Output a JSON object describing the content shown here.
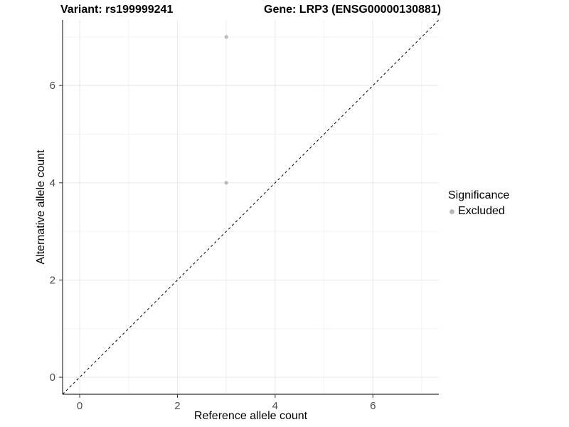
{
  "chart_data": {
    "type": "scatter",
    "title_left": "Variant: rs199999241",
    "title_right": "Gene: LRP3 (ENSG00000130881)",
    "xlabel": "Reference allele count",
    "ylabel": "Alternative allele count",
    "xlim": [
      -0.35,
      7.35
    ],
    "ylim": [
      -0.35,
      7.35
    ],
    "xticks": [
      0,
      2,
      4,
      6
    ],
    "yticks": [
      0,
      2,
      4,
      6
    ],
    "x_minor_ticks": [
      1,
      3,
      5,
      7
    ],
    "y_minor_ticks": [
      1,
      3,
      5,
      7
    ],
    "grid": "major+minor",
    "points": [
      {
        "x": 3,
        "y": 7,
        "significance": "Excluded"
      },
      {
        "x": 3,
        "y": 4,
        "significance": "Excluded"
      }
    ],
    "reference_line": {
      "slope": 1,
      "intercept": 0,
      "style": "dashed",
      "color": "#000000"
    },
    "legend": {
      "title": "Significance",
      "position": "right",
      "items": [
        {
          "label": "Excluded",
          "color": "#b9b9b9"
        }
      ]
    },
    "colors": {
      "background": "#ffffff",
      "point": "#b9b9b9",
      "grid_major": "#e8e8e8",
      "grid_minor": "#f2f2f2",
      "axis_line": "#333333",
      "tick_label": "#4d4d4d"
    }
  }
}
